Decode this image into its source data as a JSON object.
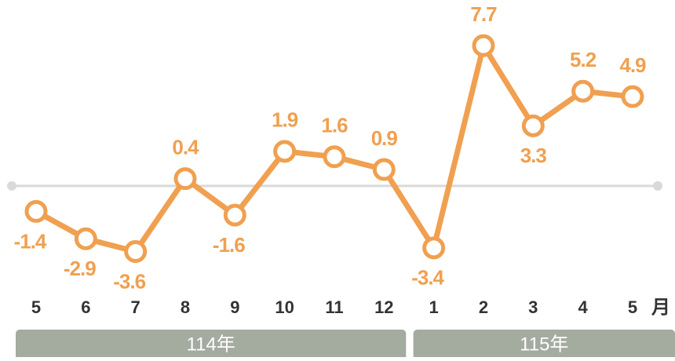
{
  "chart_data": {
    "type": "line",
    "categories": [
      "5",
      "6",
      "7",
      "8",
      "9",
      "10",
      "11",
      "12",
      "1",
      "2",
      "3",
      "4",
      "5"
    ],
    "series": [
      {
        "name": null,
        "color": "#f0a050",
        "values": [
          -1.4,
          -2.9,
          -3.6,
          0.4,
          -1.6,
          1.9,
          1.6,
          0.9,
          -3.4,
          7.7,
          3.3,
          5.2,
          4.9
        ]
      }
    ],
    "x_unit": "月",
    "groups": [
      "114年",
      "115年"
    ],
    "ylim": [
      -5,
      9
    ],
    "yticks": [
      0
    ]
  }
}
